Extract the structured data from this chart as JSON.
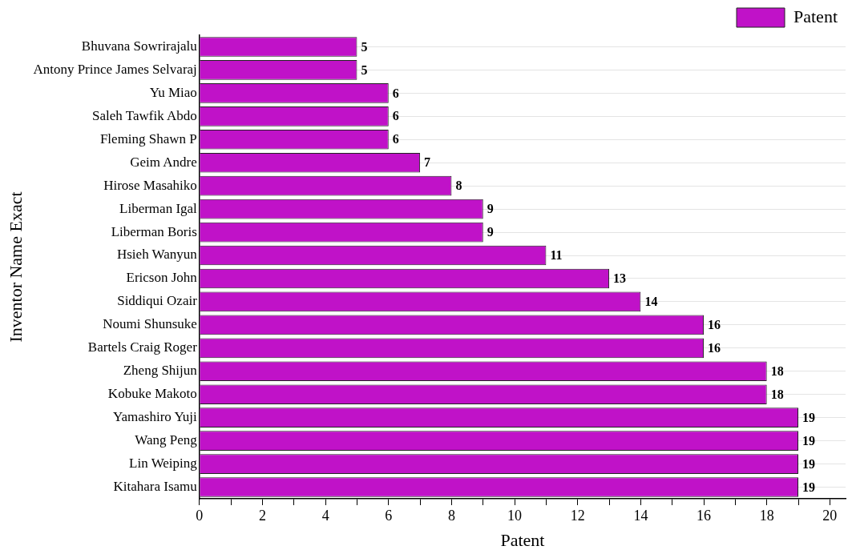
{
  "chart_data": {
    "type": "bar",
    "orientation": "horizontal",
    "xlabel": "Patent",
    "ylabel": "Inventor Name Exact",
    "categories": [
      "Bhuvana Sowrirajalu",
      "Antony Prince James Selvaraj",
      "Yu Miao",
      "Saleh Tawfik Abdo",
      "Fleming Shawn P",
      "Geim Andre",
      "Hirose Masahiko",
      "Liberman Igal",
      "Liberman Boris",
      "Hsieh Wanyun",
      "Ericson John",
      "Siddiqui Ozair",
      "Noumi Shunsuke",
      "Bartels Craig Roger",
      "Zheng Shijun",
      "Kobuke Makoto",
      "Yamashiro Yuji",
      "Wang Peng",
      "Lin Weiping",
      "Kitahara Isamu"
    ],
    "series": [
      {
        "name": "Patent",
        "color": "#c012c8",
        "values": [
          5,
          5,
          6,
          6,
          6,
          7,
          8,
          9,
          9,
          11,
          13,
          14,
          16,
          16,
          18,
          18,
          19,
          19,
          19,
          19
        ]
      }
    ],
    "xlim": [
      0,
      20.5
    ],
    "xticks": [
      0,
      {
        "value": 1,
        "label": null
      },
      2,
      {
        "value": 3,
        "label": null
      },
      4,
      {
        "value": 5,
        "label": null
      },
      6,
      {
        "value": 7,
        "label": null
      },
      8,
      {
        "value": 9,
        "label": null
      },
      10,
      {
        "value": 11,
        "label": null
      },
      12,
      {
        "value": 13,
        "label": null
      },
      14,
      {
        "value": 15,
        "label": null
      },
      16,
      {
        "value": 17,
        "label": null
      },
      18,
      {
        "value": 19,
        "label": null
      },
      20
    ],
    "data_labels": true,
    "grid": "y",
    "legend": "top right"
  }
}
